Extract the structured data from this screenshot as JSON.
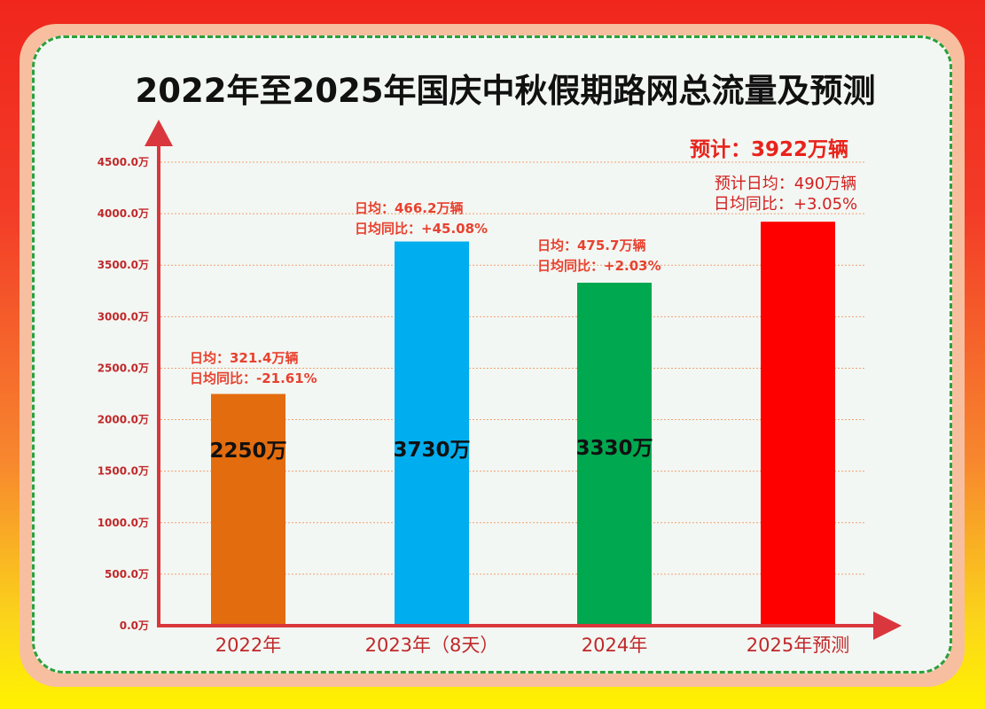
{
  "title": "2022年至2025年国庆中秋假期路网总流量及预测",
  "forecast_headline": "预计：3922万辆",
  "colors": {
    "bar_2022": "#e36c0e",
    "bar_2023": "#00aeef",
    "bar_2024": "#00a850",
    "bar_2025": "#ff0000",
    "axis": "#d9373d",
    "annotation": "#e8412f",
    "gridline": "#f0a070",
    "dashed_border": "#2aa13a"
  },
  "chart_data": {
    "type": "bar",
    "title": "2022年至2025年国庆中秋假期路网总流量及预测",
    "categories": [
      "2022年",
      "2023年（8天）",
      "2024年",
      "2025年预测"
    ],
    "values": [
      2250,
      3730,
      3330,
      3922
    ],
    "value_labels": [
      "2250万",
      "3730万",
      "3330万",
      ""
    ],
    "y_ticks": [
      "0.0万",
      "500.0万",
      "1000.0万",
      "1500.0万",
      "2000.0万",
      "2500.0万",
      "3000.0万",
      "3500.0万",
      "4000.0万",
      "4500.0万"
    ],
    "ylim": [
      0,
      4500
    ],
    "grid": true,
    "annotations": [
      {
        "line1": "日均：321.4万辆",
        "line2": "日均同比：-21.61%"
      },
      {
        "line1": "日均：466.2万辆",
        "line2": "日均同比：+45.08%"
      },
      {
        "line1": "日均：475.7万辆",
        "line2": "日均同比：+2.03%"
      },
      {
        "line1": "预计日均：490万辆",
        "line2": "日均同比：+3.05%"
      }
    ]
  }
}
